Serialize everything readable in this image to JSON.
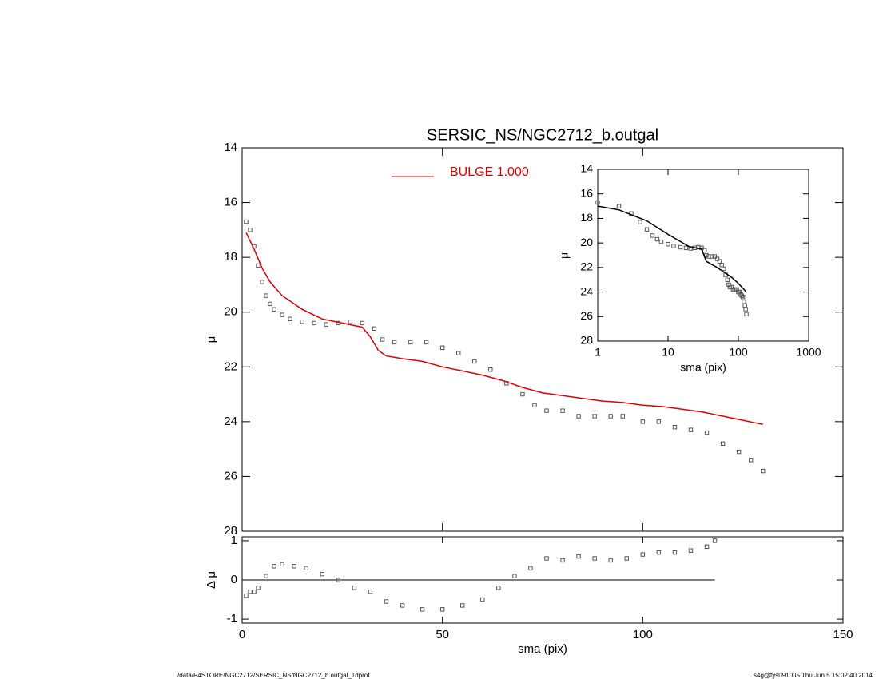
{
  "chart_data": [
    {
      "type": "line",
      "title": "SERSIC_NS/NGC2712_b.outgal",
      "ylabel": "μ",
      "y_inverted": true,
      "xlim": [
        0,
        150
      ],
      "xticks": [
        0,
        50,
        100,
        150
      ],
      "ylim": [
        14,
        28
      ],
      "yticks": [
        14,
        16,
        18,
        20,
        22,
        24,
        26,
        28
      ],
      "series": [
        {
          "kind": "scatter",
          "color": "#555555",
          "x": [
            1,
            2,
            3,
            4,
            5,
            6,
            7,
            8,
            10,
            12,
            15,
            18,
            21,
            24,
            27,
            30,
            33,
            35,
            38,
            42,
            46,
            50,
            54,
            58,
            62,
            66,
            70,
            73,
            76,
            80,
            84,
            88,
            92,
            95,
            100,
            104,
            108,
            112,
            116,
            120,
            124,
            127,
            130
          ],
          "values": [
            16.7,
            17.0,
            17.6,
            18.3,
            18.9,
            19.4,
            19.7,
            19.9,
            20.1,
            20.25,
            20.35,
            20.4,
            20.45,
            20.4,
            20.35,
            20.4,
            20.6,
            21.0,
            21.1,
            21.1,
            21.1,
            21.3,
            21.5,
            21.8,
            22.1,
            22.6,
            23.0,
            23.4,
            23.6,
            23.6,
            23.8,
            23.8,
            23.8,
            23.8,
            24.0,
            24.0,
            24.2,
            24.3,
            24.4,
            24.8,
            25.1,
            25.4,
            25.8
          ]
        },
        {
          "kind": "line",
          "name": "BULGE  1.000",
          "color": "#e00000",
          "x": [
            1,
            3,
            5,
            7,
            10,
            15,
            20,
            25,
            30,
            32,
            34,
            36,
            40,
            45,
            50,
            55,
            60,
            65,
            70,
            75,
            80,
            85,
            90,
            95,
            100,
            105,
            110,
            115,
            120,
            125,
            130
          ],
          "values": [
            17.1,
            17.7,
            18.4,
            18.9,
            19.4,
            19.9,
            20.25,
            20.4,
            20.55,
            20.9,
            21.4,
            21.6,
            21.7,
            21.8,
            22.0,
            22.15,
            22.3,
            22.5,
            22.75,
            22.95,
            23.05,
            23.15,
            23.25,
            23.3,
            23.4,
            23.45,
            23.55,
            23.65,
            23.8,
            23.95,
            24.1
          ]
        }
      ]
    },
    {
      "type": "scatter",
      "ylabel": "Δ μ",
      "xlabel": "sma (pix)",
      "xlim": [
        0,
        150
      ],
      "xticks": [
        0,
        50,
        100,
        150
      ],
      "ylim": [
        -1.1,
        1.1
      ],
      "yticks": [
        -1,
        0,
        1
      ],
      "series": [
        {
          "kind": "scatter",
          "color": "#555555",
          "x": [
            1,
            2,
            3,
            4,
            6,
            8,
            10,
            13,
            16,
            20,
            24,
            28,
            32,
            36,
            40,
            45,
            50,
            55,
            60,
            64,
            68,
            72,
            76,
            80,
            84,
            88,
            92,
            96,
            100,
            104,
            108,
            112,
            116,
            118
          ],
          "values": [
            -0.4,
            -0.3,
            -0.3,
            -0.2,
            0.1,
            0.35,
            0.4,
            0.35,
            0.3,
            0.15,
            0.0,
            -0.2,
            -0.3,
            -0.55,
            -0.65,
            -0.75,
            -0.75,
            -0.65,
            -0.5,
            -0.2,
            0.1,
            0.3,
            0.55,
            0.5,
            0.6,
            0.55,
            0.5,
            0.55,
            0.65,
            0.7,
            0.7,
            0.75,
            0.85,
            1.0
          ]
        }
      ]
    },
    {
      "type": "line",
      "ylabel": "μ",
      "xlabel": "sma (pix)",
      "xlog": true,
      "y_inverted": true,
      "xlim": [
        1,
        1000
      ],
      "xticks": [
        1,
        10,
        100,
        1000
      ],
      "ylim": [
        14,
        28
      ],
      "yticks": [
        14,
        16,
        18,
        20,
        22,
        24,
        26,
        28
      ],
      "series": [
        {
          "kind": "scatter",
          "color": "#555555",
          "x": [
            1,
            2,
            3,
            4,
            5,
            6,
            7,
            8,
            10,
            12,
            15,
            18,
            21,
            24,
            27,
            30,
            33,
            35,
            38,
            42,
            46,
            50,
            54,
            58,
            62,
            66,
            70,
            73,
            76,
            80,
            84,
            88,
            92,
            95,
            100,
            104,
            108,
            112,
            116,
            120,
            124,
            127,
            130
          ],
          "values": [
            16.7,
            17.0,
            17.6,
            18.3,
            18.9,
            19.4,
            19.7,
            19.9,
            20.1,
            20.25,
            20.35,
            20.4,
            20.45,
            20.4,
            20.35,
            20.4,
            20.6,
            21.0,
            21.1,
            21.1,
            21.1,
            21.3,
            21.5,
            21.8,
            22.1,
            22.6,
            23.0,
            23.4,
            23.6,
            23.6,
            23.8,
            23.8,
            23.8,
            23.8,
            24.0,
            24.0,
            24.2,
            24.3,
            24.4,
            24.8,
            25.1,
            25.4,
            25.8
          ]
        },
        {
          "kind": "line",
          "color": "#000000",
          "x": [
            1,
            2,
            5,
            10,
            20,
            30,
            35,
            50,
            80,
            100,
            130
          ],
          "values": [
            17.0,
            17.3,
            18.2,
            19.3,
            20.3,
            20.5,
            21.5,
            22.0,
            22.8,
            23.3,
            24.0
          ]
        }
      ]
    }
  ],
  "footer": {
    "left": "/data/P4STORE/NGC2712/SERSIC_NS/NGC2712_b.outgal_1dprof",
    "right": "s4g@fys091005  Thu Jun  5 15:02:40 2014"
  }
}
